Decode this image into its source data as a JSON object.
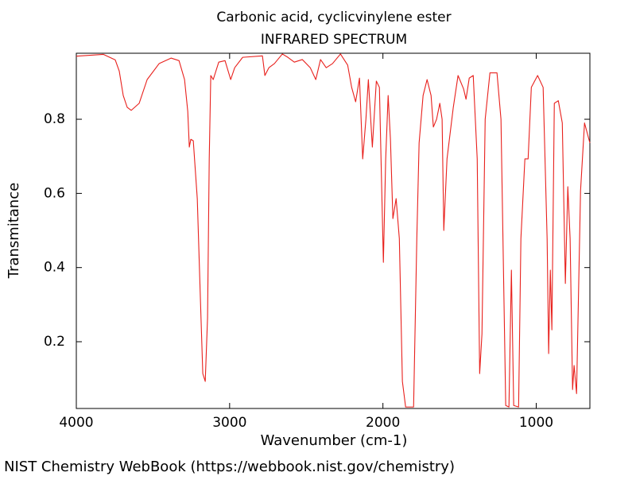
{
  "chart_data": {
    "type": "line",
    "title": "Carbonic acid, cyclicvinylene ester",
    "subtitle": "INFRARED SPECTRUM",
    "x_label": "Wavenumber (cm-1)",
    "y_label": "Transmitance",
    "source": "NIST Chemistry WebBook (https://webbook.nist.gov/chemistry)",
    "color": "#e8201c",
    "grid": false,
    "xlim": [
      4000,
      650
    ],
    "ylim": [
      0.02,
      0.978
    ],
    "xticks": [
      4000,
      3000,
      2000,
      1000
    ],
    "yticks": [
      0.2,
      0.4,
      0.6,
      0.8
    ],
    "x": [
      4000,
      3824,
      3746,
      3720,
      3694,
      3668,
      3642,
      3590,
      3538,
      3460,
      3382,
      3330,
      3294,
      3273,
      3263,
      3253,
      3237,
      3211,
      3190,
      3175,
      3159,
      3144,
      3133,
      3123,
      3107,
      3071,
      3030,
      2993,
      2967,
      2915,
      2786,
      2770,
      2744,
      2708,
      2656,
      2620,
      2578,
      2526,
      2474,
      2438,
      2407,
      2370,
      2329,
      2277,
      2230,
      2204,
      2178,
      2153,
      2132,
      2111,
      2095,
      2069,
      2043,
      2023,
      1997,
      1982,
      1966,
      1951,
      1935,
      1914,
      1893,
      1873,
      1852,
      1800,
      1779,
      1764,
      1738,
      1712,
      1686,
      1671,
      1650,
      1629,
      1614,
      1603,
      1582,
      1541,
      1510,
      1474,
      1458,
      1437,
      1411,
      1385,
      1369,
      1354,
      1333,
      1302,
      1256,
      1230,
      1199,
      1178,
      1162,
      1147,
      1115,
      1100,
      1074,
      1053,
      1032,
      991,
      955,
      929,
      919,
      908,
      898,
      882,
      856,
      830,
      810,
      794,
      779,
      763,
      753,
      737,
      711,
      685,
      650
    ],
    "values": [
      0.97,
      0.975,
      0.96,
      0.93,
      0.864,
      0.832,
      0.824,
      0.843,
      0.907,
      0.95,
      0.965,
      0.958,
      0.907,
      0.821,
      0.725,
      0.746,
      0.742,
      0.586,
      0.307,
      0.114,
      0.093,
      0.264,
      0.693,
      0.918,
      0.907,
      0.954,
      0.958,
      0.907,
      0.939,
      0.967,
      0.971,
      0.918,
      0.939,
      0.95,
      0.976,
      0.967,
      0.954,
      0.961,
      0.939,
      0.907,
      0.961,
      0.939,
      0.95,
      0.976,
      0.946,
      0.886,
      0.847,
      0.911,
      0.693,
      0.8,
      0.907,
      0.725,
      0.903,
      0.886,
      0.414,
      0.693,
      0.864,
      0.746,
      0.532,
      0.586,
      0.478,
      0.093,
      0.024,
      0.024,
      0.478,
      0.736,
      0.864,
      0.907,
      0.864,
      0.779,
      0.8,
      0.843,
      0.8,
      0.5,
      0.693,
      0.832,
      0.918,
      0.882,
      0.854,
      0.911,
      0.918,
      0.693,
      0.114,
      0.221,
      0.8,
      0.925,
      0.925,
      0.8,
      0.028,
      0.024,
      0.393,
      0.028,
      0.024,
      0.478,
      0.693,
      0.693,
      0.886,
      0.918,
      0.886,
      0.478,
      0.168,
      0.393,
      0.232,
      0.843,
      0.85,
      0.79,
      0.357,
      0.618,
      0.478,
      0.071,
      0.136,
      0.06,
      0.607,
      0.79,
      0.736
    ]
  }
}
